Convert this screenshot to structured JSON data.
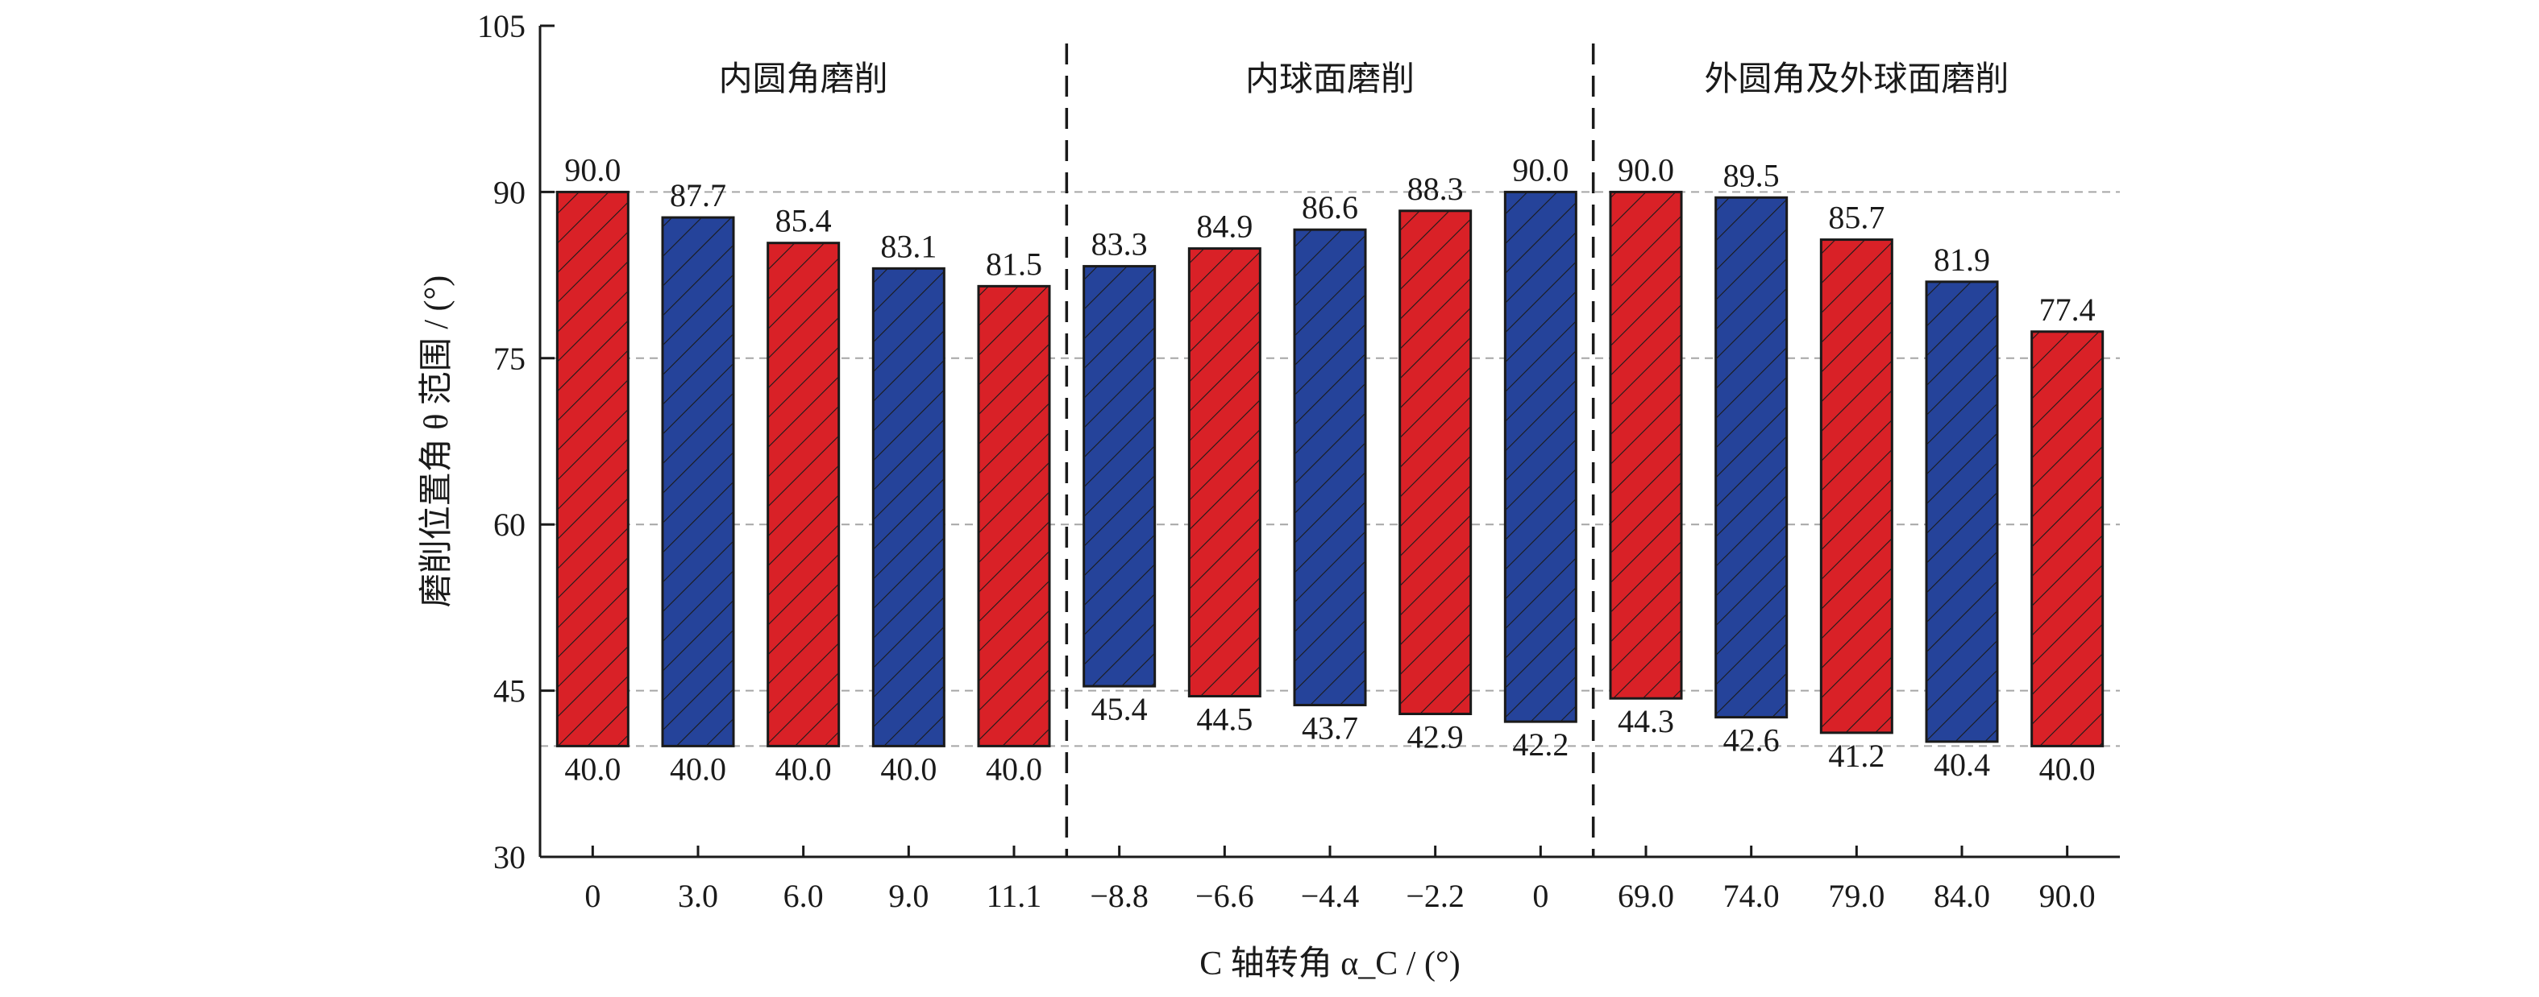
{
  "chart_data": {
    "type": "bar",
    "subtype": "floating-range",
    "xlabel": "C 轴转角 α_C / (°)",
    "ylabel": "磨削位置角 θ 范围 / (°)",
    "ylim": [
      30,
      105
    ],
    "yticks": [
      30,
      45,
      60,
      75,
      90,
      105
    ],
    "grid": {
      "horizontal_dashed_at": [
        40,
        45,
        60,
        75,
        90
      ]
    },
    "categories": [
      "0",
      "3.0",
      "6.0",
      "9.0",
      "11.1",
      "−8.8",
      "−6.6",
      "−4.4",
      "−2.2",
      "0",
      "69.0",
      "74.0",
      "79.0",
      "84.0",
      "90.0"
    ],
    "low": [
      40.0,
      40.0,
      40.0,
      40.0,
      40.0,
      45.4,
      44.5,
      43.7,
      42.9,
      42.2,
      44.3,
      42.6,
      41.2,
      40.4,
      40.0
    ],
    "high": [
      90.0,
      87.7,
      85.4,
      83.1,
      81.5,
      83.3,
      84.9,
      86.6,
      88.3,
      90.0,
      90.0,
      89.5,
      85.7,
      81.9,
      77.4
    ],
    "low_labels": [
      "40.0",
      "40.0",
      "40.0",
      "40.0",
      "40.0",
      "45.4",
      "44.5",
      "43.7",
      "42.9",
      "42.2",
      "44.3",
      "42.6",
      "41.2",
      "40.4",
      "40.0"
    ],
    "high_labels": [
      "90.0",
      "87.7",
      "85.4",
      "83.1",
      "81.5",
      "83.3",
      "84.9",
      "86.6",
      "88.3",
      "90.0",
      "90.0",
      "89.5",
      "85.7",
      "81.9",
      "77.4"
    ],
    "bar_colors": [
      "red",
      "blue",
      "red",
      "blue",
      "red",
      "blue",
      "red",
      "blue",
      "red",
      "blue",
      "red",
      "blue",
      "red",
      "blue",
      "red"
    ],
    "colors": {
      "red": "#d92127",
      "blue": "#25439a",
      "grid": "#a6a6a6",
      "axis": "#1a1a1a"
    },
    "regions": [
      {
        "label": "内圆角磨削",
        "start": 0,
        "end": 4
      },
      {
        "label": "内球面磨削",
        "start": 5,
        "end": 9
      },
      {
        "label": "外圆角及外球面磨削",
        "start": 10,
        "end": 14
      }
    ],
    "hatch": "diagonal"
  }
}
